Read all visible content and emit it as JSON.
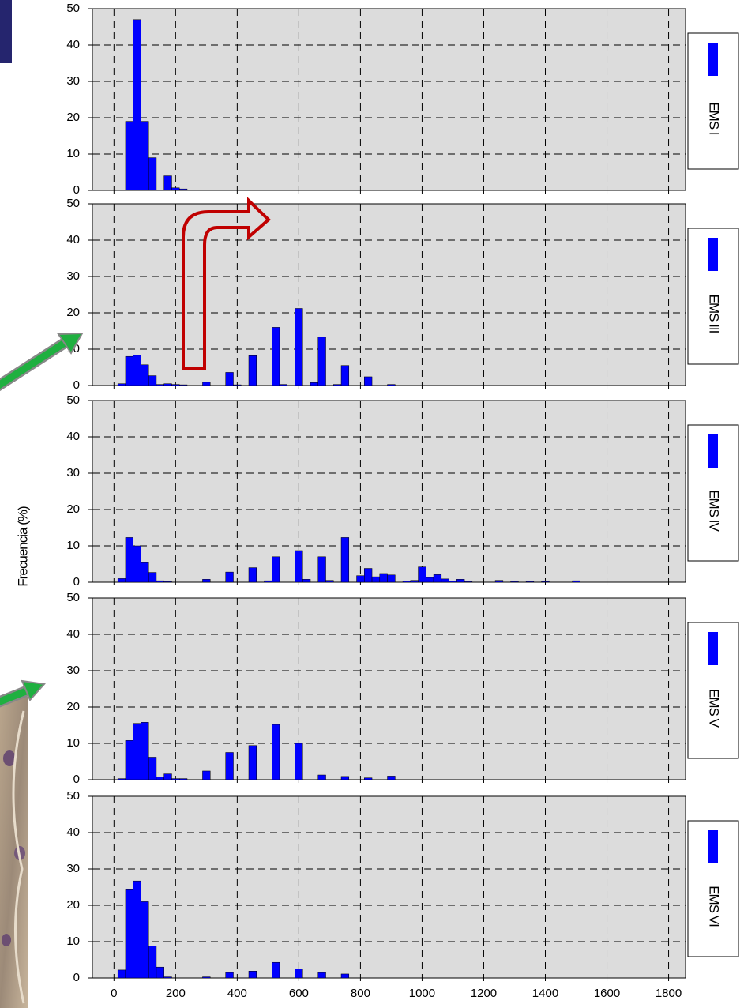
{
  "chart_data": [
    {
      "type": "bar",
      "x": [
        50,
        75,
        100,
        125,
        175,
        200,
        225
      ],
      "values": [
        19,
        47,
        19,
        9,
        4,
        0.7,
        0.4
      ],
      "color": "#0000ff",
      "legend": "EMS I",
      "legend_position": "right",
      "xlim": [
        -70,
        1855
      ],
      "xticks": [
        0,
        200,
        400,
        600,
        800,
        1000,
        1200,
        1400,
        1600,
        1800
      ],
      "ylim": [
        0,
        50
      ],
      "yticks": [
        0,
        10,
        20,
        30,
        40,
        50
      ],
      "grid": true
    },
    {
      "type": "bar",
      "x": [
        25,
        50,
        75,
        100,
        125,
        150,
        175,
        200,
        225,
        300,
        375,
        400,
        450,
        525,
        550,
        600,
        650,
        675,
        725,
        750,
        825,
        900
      ],
      "values": [
        0.5,
        8,
        8.3,
        5.7,
        2.7,
        0.3,
        0.5,
        0.3,
        0.2,
        0.9,
        3.6,
        0.2,
        8.2,
        16,
        0.3,
        21.2,
        0.8,
        13.3,
        0.3,
        5.5,
        2.4,
        0.3
      ],
      "color": "#0000ff",
      "legend": "EMS III",
      "legend_position": "right",
      "xlim": [
        -70,
        1855
      ],
      "xticks": [
        0,
        200,
        400,
        600,
        800,
        1000,
        1200,
        1400,
        1600,
        1800
      ],
      "ylim": [
        0,
        50
      ],
      "yticks": [
        0,
        10,
        20,
        30,
        40,
        50
      ],
      "grid": true
    },
    {
      "type": "bar",
      "x": [
        25,
        50,
        75,
        100,
        125,
        150,
        175,
        300,
        375,
        450,
        500,
        525,
        600,
        625,
        675,
        700,
        750,
        800,
        825,
        850,
        875,
        900,
        950,
        975,
        1000,
        1025,
        1050,
        1075,
        1100,
        1125,
        1150,
        1250,
        1300,
        1350,
        1400,
        1500
      ],
      "values": [
        1,
        12.3,
        10,
        5.4,
        2.7,
        0.4,
        0.2,
        0.8,
        2.8,
        4,
        0.4,
        7,
        8.7,
        0.8,
        7,
        0.5,
        12.3,
        1.8,
        3.8,
        1.5,
        2.4,
        2,
        0.3,
        0.5,
        4.2,
        1.3,
        2.1,
        0.9,
        0.3,
        0.8,
        0.2,
        0.5,
        0.2,
        0.2,
        0.2,
        0.4
      ],
      "color": "#0000ff",
      "legend": "EMS IV",
      "legend_position": "right",
      "ylabel": "Frecuencia (%)",
      "xlim": [
        -70,
        1855
      ],
      "xticks": [
        0,
        200,
        400,
        600,
        800,
        1000,
        1200,
        1400,
        1600,
        1800
      ],
      "ylim": [
        0,
        50
      ],
      "yticks": [
        0,
        10,
        20,
        30,
        40,
        50
      ],
      "grid": true
    },
    {
      "type": "bar",
      "x": [
        25,
        50,
        75,
        100,
        125,
        150,
        175,
        200,
        225,
        300,
        375,
        450,
        525,
        600,
        675,
        750,
        825,
        900
      ],
      "values": [
        0.3,
        10.8,
        15.5,
        15.8,
        6.2,
        0.8,
        1.6,
        0.3,
        0.3,
        2.4,
        7.5,
        9.4,
        15.2,
        10,
        1.3,
        0.9,
        0.5,
        1
      ],
      "color": "#0000ff",
      "legend": "EMS V",
      "legend_position": "right",
      "xlim": [
        -70,
        1855
      ],
      "xticks": [
        0,
        200,
        400,
        600,
        800,
        1000,
        1200,
        1400,
        1600,
        1800
      ],
      "ylim": [
        0,
        50
      ],
      "yticks": [
        0,
        10,
        20,
        30,
        40,
        50
      ],
      "grid": true
    },
    {
      "type": "bar",
      "x": [
        25,
        50,
        75,
        100,
        125,
        150,
        175,
        300,
        375,
        450,
        525,
        600,
        675,
        750
      ],
      "values": [
        2.2,
        24.5,
        26.7,
        21,
        8.8,
        3,
        0.3,
        0.3,
        1.5,
        1.9,
        4.3,
        2.5,
        1.5,
        1.1
      ],
      "color": "#0000ff",
      "legend": "EMS VI",
      "legend_position": "right",
      "xtick_labels": true,
      "xlim": [
        -70,
        1855
      ],
      "xticks": [
        0,
        200,
        400,
        600,
        800,
        1000,
        1200,
        1400,
        1600,
        1800
      ],
      "ylim": [
        0,
        50
      ],
      "yticks": [
        0,
        10,
        20,
        30,
        40,
        50
      ],
      "grid": true
    }
  ]
}
